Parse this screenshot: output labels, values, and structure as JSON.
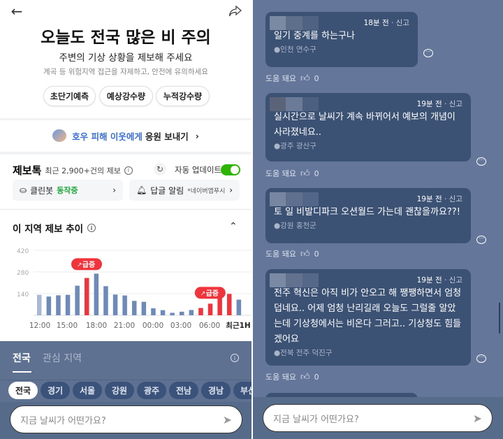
{
  "left": {
    "title": "오늘도 전국 많은 비 주의",
    "subtitle": "주변의 기상 상황을 제보해 주세요",
    "notice": "계곡 등 위험지역 접근을 자제하고, 안전에 유의하세요",
    "pills": [
      "초단기예측",
      "예상강수량",
      "누적강수량"
    ],
    "banner": {
      "highlight": "호우 피해 이웃에게",
      "rest": "응원 보내기"
    },
    "feed": {
      "title": "제보톡",
      "count": "최근 2,900+건의 제보",
      "auto_update": "자동 업데이트",
      "auto_update_on": true
    },
    "cleanbot": {
      "label": "클린봇",
      "status": "동작중"
    },
    "reply_alert": {
      "label": "답글 알림",
      "note": "*네이버앱푸시"
    },
    "chart_title": "이 지역 제보 추이",
    "tabs": [
      "전국",
      "관심 지역"
    ],
    "chips": [
      "전국",
      "경기",
      "서울",
      "강원",
      "광주",
      "전남",
      "경남",
      "부산"
    ],
    "input_placeholder": "지금 날씨가 어떤가요?"
  },
  "chart_data": {
    "type": "bar",
    "yticks": [
      140,
      280,
      420
    ],
    "ylim": [
      0,
      420
    ],
    "xtick_labels": [
      "12:00",
      "15:00",
      "18:00",
      "21:00",
      "00:00",
      "03:00",
      "06:00",
      "최근1H"
    ],
    "values": [
      132,
      121,
      129,
      132,
      191,
      241,
      269,
      188,
      134,
      128,
      93,
      87,
      45,
      33,
      16,
      23,
      34,
      47,
      75,
      132,
      138,
      101
    ],
    "highlight_indices": [
      5,
      17,
      18,
      19,
      20
    ],
    "annotations": [
      {
        "label": "급증",
        "bar_index": 5
      },
      {
        "label": "급증",
        "bar_index": 18
      }
    ],
    "colors": {
      "normal": "#6e8ab8",
      "surge": "#f0343c"
    }
  },
  "right": {
    "posts": [
      {
        "time": "18분 전",
        "report": "신고",
        "text": "일기 중계를 하는구나",
        "location": "인천 연수구",
        "help": "도움 돼요",
        "likes": "0"
      },
      {
        "time": "19분 전",
        "report": "신고",
        "text": "실시간으로 날씨가 계속 바뀌어서 예보의 개념이 사라졌네요..",
        "location": "광주 광산구",
        "help": "도움 돼요",
        "likes": "0"
      },
      {
        "time": "19분 전",
        "report": "신고",
        "text": "토 일 비발디파크 오션월드 가는데 괜찮을까요??!",
        "location": "강원 홍천군",
        "help": "도움 돼요",
        "likes": "0"
      },
      {
        "time": "19분 전",
        "report": "신고",
        "text": "전주 혁신은 아직 비가 안오고 해 쨍쨍하면서 엄청 덥네요.. 어제 엄청 난리길래 오늘도 그럴줄 알았는데 기상청에서는 비온다 그러고.. 기상청도 힘들겠어요",
        "location": "전북 전주 덕진구",
        "help": "도움 돼요",
        "likes": "0"
      }
    ],
    "input_placeholder": "지금 날씨가 어떤가요?"
  }
}
